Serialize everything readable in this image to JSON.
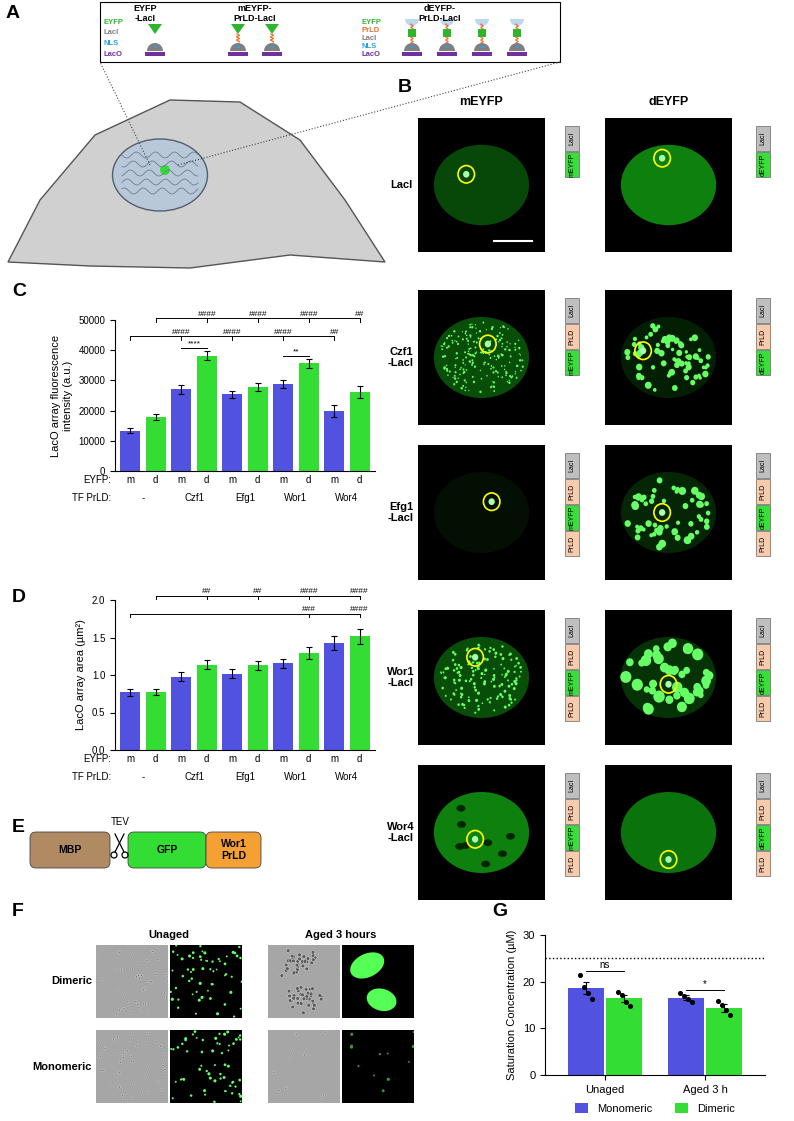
{
  "panel_labels": [
    "A",
    "B",
    "C",
    "D",
    "E",
    "F",
    "G"
  ],
  "panel_A": {
    "constructs": [
      {
        "title": "EYFP\n-LacI",
        "legend": [
          {
            "text": "EYFP",
            "color": "#2db52d"
          },
          {
            "text": "LacI",
            "color": "#7f7f7f"
          },
          {
            "text": "NLS",
            "color": "#2f9fe0"
          },
          {
            "text": "LacO",
            "color": "#7030a0"
          }
        ]
      },
      {
        "title": "mEYFP-\nPrLD-LacI"
      },
      {
        "title": "dEYFP-\nPrLD-LacI",
        "legend": [
          {
            "text": "EYFP",
            "color": "#2db52d"
          },
          {
            "text": "PrLD",
            "color": "#ed6c2b"
          },
          {
            "text": "LacI",
            "color": "#7f7f7f"
          },
          {
            "text": "NLS",
            "color": "#2f9fe0"
          },
          {
            "text": "LacO",
            "color": "#7030a0"
          }
        ]
      }
    ]
  },
  "panel_B": {
    "columns": [
      "mEYFP",
      "dEYFP"
    ],
    "part_colors": {
      "LacI": "#bfbfbf",
      "PrLD": "#f8cbad",
      "mEYFP": "#3ade3a",
      "dEYFP": "#3ade3a"
    },
    "rows": [
      {
        "label": "LacI",
        "schematic": [
          [
            "LacI",
            "mEYFP"
          ],
          [
            "LacI",
            "dEYFP"
          ]
        ]
      },
      {
        "label": "Czf1\n-LacI",
        "schematic": [
          [
            "LacI",
            "PrLD",
            "mEYFP"
          ],
          [
            "LacI",
            "PrLD",
            "dEYFP"
          ]
        ]
      },
      {
        "label": "Efg1\n-LacI",
        "schematic": [
          [
            "LacI",
            "PrLD",
            "mEYFP",
            "PrLD"
          ],
          [
            "LacI",
            "PrLD",
            "dEYFP",
            "PrLD"
          ]
        ]
      },
      {
        "label": "Wor1\n-LacI",
        "schematic": [
          [
            "LacI",
            "PrLD",
            "mEYFP",
            "PrLD"
          ],
          [
            "LacI",
            "PrLD",
            "dEYFP",
            "PrLD"
          ]
        ]
      },
      {
        "label": "Wor4\n-LacI",
        "schematic": [
          [
            "LacI",
            "PrLD",
            "mEYFP",
            "PrLD"
          ],
          [
            "LacI",
            "PrLD",
            "dEYFP",
            "PrLD"
          ]
        ]
      }
    ]
  },
  "chart_data": [
    {
      "type": "bar",
      "categories": [
        "m",
        "d",
        "m",
        "d",
        "m",
        "d",
        "m",
        "d",
        "m",
        "d"
      ],
      "groups": [
        "-",
        "Czf1",
        "Efg1",
        "Wor1",
        "Wor4"
      ],
      "category_row_label": "EYFP:",
      "group_row_label": "TF PrLD:",
      "values": [
        13300,
        17800,
        27000,
        38200,
        25400,
        27800,
        28800,
        35600,
        20000,
        26300
      ],
      "errors": [
        800,
        1000,
        1500,
        1400,
        1200,
        1400,
        1300,
        1400,
        2000,
        2000
      ],
      "colors": [
        "#5252e0",
        "#33dd33",
        "#5252e0",
        "#33dd33",
        "#5252e0",
        "#33dd33",
        "#5252e0",
        "#33dd33",
        "#5252e0",
        "#33dd33"
      ],
      "ylabel": "LacO array fluorescence\nintensity (a.u.)",
      "ylim": [
        0,
        50000
      ],
      "yticks": [
        0,
        10000,
        20000,
        30000,
        40000,
        50000
      ],
      "combs": [
        {
          "from": 0,
          "to": [
            2,
            4,
            6,
            8
          ],
          "labels": [
            "####",
            "####",
            "####",
            "##"
          ]
        },
        {
          "from": 1,
          "to": [
            3,
            5,
            7,
            9
          ],
          "labels": [
            "####",
            "####",
            "####",
            "##"
          ]
        }
      ],
      "pairs": [
        {
          "from": 2,
          "to": 3,
          "label": "****"
        },
        {
          "from": 6,
          "to": 7,
          "label": "**"
        }
      ]
    },
    {
      "type": "bar",
      "categories": [
        "m",
        "d",
        "m",
        "d",
        "m",
        "d",
        "m",
        "d",
        "m",
        "d"
      ],
      "groups": [
        "-",
        "Czf1",
        "Efg1",
        "Wor1",
        "Wor4"
      ],
      "category_row_label": "EYFP:",
      "group_row_label": "TF PrLD:",
      "values": [
        0.77,
        0.78,
        0.98,
        1.14,
        1.02,
        1.13,
        1.16,
        1.3,
        1.43,
        1.52
      ],
      "errors": [
        0.05,
        0.04,
        0.06,
        0.06,
        0.06,
        0.06,
        0.06,
        0.08,
        0.09,
        0.1
      ],
      "colors": [
        "#5252e0",
        "#33dd33",
        "#5252e0",
        "#33dd33",
        "#5252e0",
        "#33dd33",
        "#5252e0",
        "#33dd33",
        "#5252e0",
        "#33dd33"
      ],
      "ylabel": "LacO array area (µm²)",
      "ylim": [
        0,
        2.0
      ],
      "yticks": [
        {
          "value": 0,
          "label": "0.0"
        },
        {
          "value": 0.5,
          "label": "0.5"
        },
        {
          "value": 1.0,
          "label": "1.0"
        },
        {
          "value": 1.5,
          "label": "1.5"
        },
        {
          "value": 2.0,
          "label": "2.0"
        }
      ],
      "combs": [
        {
          "from": 0,
          "to": [
            7,
            9
          ],
          "labels": [
            "###",
            "####"
          ]
        },
        {
          "from": 1,
          "to": [
            3,
            5,
            7,
            9
          ],
          "labels": [
            "##",
            "##",
            "####",
            "####"
          ]
        }
      ]
    },
    {
      "type": "bar",
      "categories": [
        "Unaged",
        "Aged 3 h"
      ],
      "series": [
        {
          "name": "Monomeric",
          "color": "#5252e0",
          "values": [
            18.6,
            16.6
          ],
          "errors": [
            1.3,
            0.6
          ],
          "points": [
            [
              21.5,
              18.8,
              17.5,
              16.2
            ],
            [
              17.5,
              17.0,
              16.3,
              15.7
            ]
          ]
        },
        {
          "name": "Dimeric",
          "color": "#33dd33",
          "values": [
            16.4,
            14.4
          ],
          "errors": [
            0.8,
            0.8
          ],
          "points": [
            [
              17.8,
              17.2,
              15.6,
              14.8
            ],
            [
              15.8,
              15.0,
              14.0,
              12.9
            ]
          ]
        }
      ],
      "ylabel": "Saturation Concentration (µM)",
      "ylim": [
        0,
        30
      ],
      "yticks": [
        0,
        10,
        20,
        30
      ],
      "reference_line": 25,
      "comparisons": [
        {
          "category": 0,
          "label": "ns"
        },
        {
          "category": 1,
          "label": "*"
        }
      ],
      "legend": "upper center"
    }
  ],
  "panel_E": {
    "parts": [
      {
        "text": "MBP",
        "color": "#b08a62"
      },
      {
        "text": "GFP",
        "color": "#33dd33"
      },
      {
        "text": "Wor1\nPrLD",
        "color": "#f5a033"
      }
    ],
    "cleavage": "TEV"
  },
  "panel_F": {
    "columns": [
      "Unaged",
      "Aged 3 hours"
    ],
    "rows": [
      "Dimeric",
      "Monomeric"
    ]
  }
}
